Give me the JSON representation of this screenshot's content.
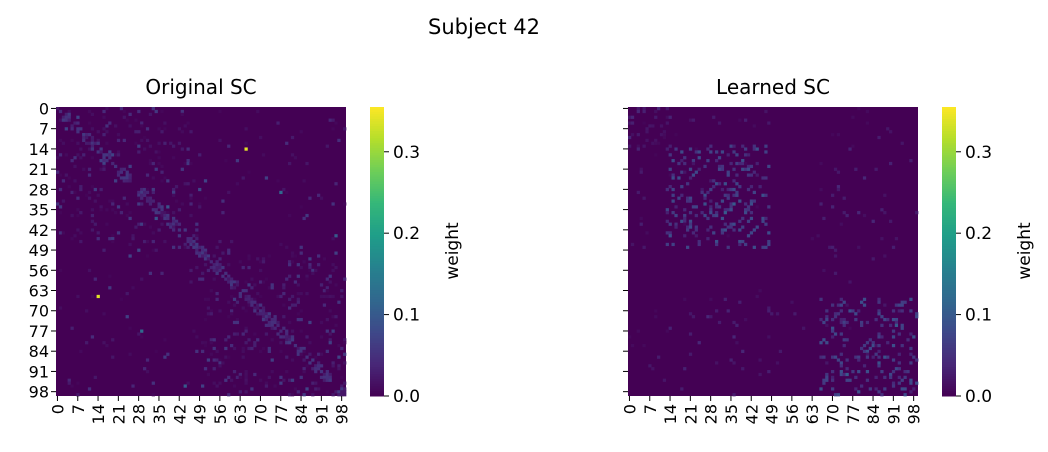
{
  "figure": {
    "suptitle": "Subject 42"
  },
  "colormap": {
    "name": "viridis",
    "stops": [
      "#440154",
      "#482878",
      "#3e4989",
      "#31688e",
      "#26828e",
      "#1f9e89",
      "#35b779",
      "#6ece58",
      "#b5de2b",
      "#fde725"
    ]
  },
  "chart_data": [
    {
      "type": "heatmap",
      "title": "Original SC",
      "rows": 100,
      "cols": 100,
      "xticks": [
        "0",
        "7",
        "14",
        "21",
        "28",
        "35",
        "42",
        "49",
        "56",
        "63",
        "70",
        "77",
        "84",
        "91",
        "98"
      ],
      "yticks": [
        "0",
        "7",
        "14",
        "21",
        "28",
        "35",
        "42",
        "49",
        "56",
        "63",
        "70",
        "77",
        "84",
        "91",
        "98"
      ],
      "show_ytick_labels": true,
      "colorbar": {
        "label": "weight",
        "ticks": [
          "0.0",
          "0.1",
          "0.2",
          "0.3"
        ],
        "vmin": 0.0,
        "vmax": 0.355
      },
      "peaks": [
        {
          "row": 14,
          "col": 65,
          "value": 0.34
        },
        {
          "row": 65,
          "col": 14,
          "value": 0.34
        },
        {
          "row": 29,
          "col": 77,
          "value": 0.12
        },
        {
          "row": 77,
          "col": 29,
          "value": 0.12
        },
        {
          "row": 44,
          "col": 96,
          "value": 0.1
        },
        {
          "row": 96,
          "col": 44,
          "value": 0.1
        },
        {
          "row": 34,
          "col": 38,
          "value": 0.09
        },
        {
          "row": 38,
          "col": 34,
          "value": 0.09
        }
      ]
    },
    {
      "type": "heatmap",
      "title": "Learned SC",
      "rows": 100,
      "cols": 100,
      "xticks": [
        "0",
        "7",
        "14",
        "21",
        "28",
        "35",
        "42",
        "49",
        "56",
        "63",
        "70",
        "77",
        "84",
        "91",
        "98"
      ],
      "yticks": [
        "0",
        "7",
        "14",
        "21",
        "28",
        "35",
        "42",
        "49",
        "56",
        "63",
        "70",
        "77",
        "84",
        "91",
        "98"
      ],
      "show_ytick_labels": false,
      "colorbar": {
        "label": "weight",
        "ticks": [
          "0.0",
          "0.1",
          "0.2",
          "0.3"
        ],
        "vmin": 0.0,
        "vmax": 0.355
      },
      "peaks": [
        {
          "row": 36,
          "col": 33,
          "value": 0.1
        },
        {
          "row": 33,
          "col": 36,
          "value": 0.1
        },
        {
          "row": 75,
          "col": 92,
          "value": 0.1
        },
        {
          "row": 92,
          "col": 75,
          "value": 0.1
        },
        {
          "row": 88,
          "col": 86,
          "value": 0.09
        },
        {
          "row": 86,
          "col": 88,
          "value": 0.09
        }
      ]
    }
  ]
}
